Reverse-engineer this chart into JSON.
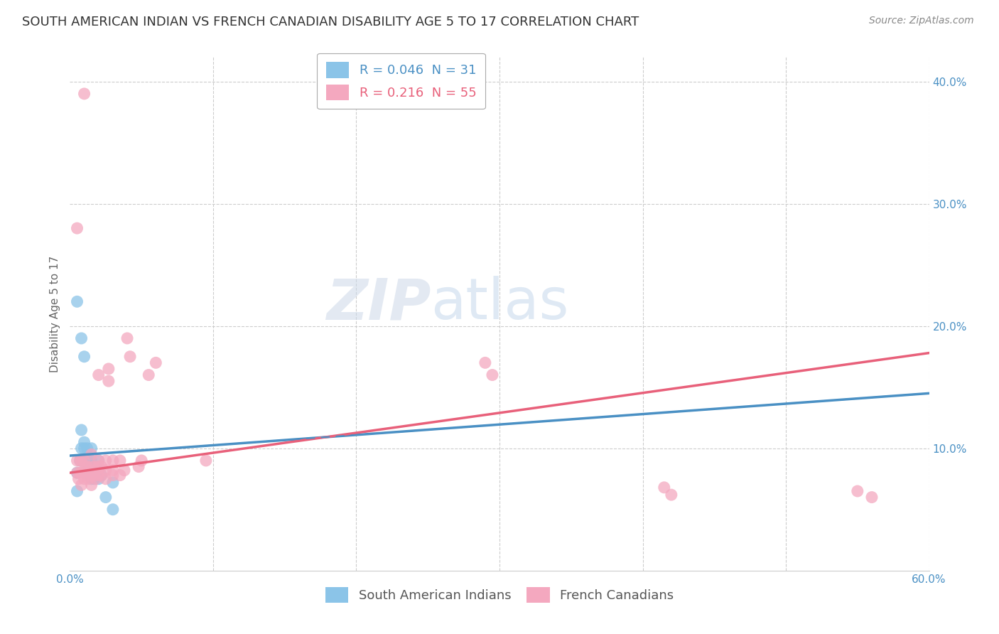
{
  "title": "SOUTH AMERICAN INDIAN VS FRENCH CANADIAN DISABILITY AGE 5 TO 17 CORRELATION CHART",
  "source": "Source: ZipAtlas.com",
  "ylabel": "Disability Age 5 to 17",
  "xlim": [
    0.0,
    0.6
  ],
  "ylim": [
    0.0,
    0.42
  ],
  "xticks": [
    0.0,
    0.1,
    0.2,
    0.3,
    0.4,
    0.5,
    0.6
  ],
  "xticklabels": [
    "0.0%",
    "",
    "",
    "",
    "",
    "",
    "60.0%"
  ],
  "yticks": [
    0.0,
    0.1,
    0.2,
    0.3,
    0.4
  ],
  "yticklabels": [
    "",
    "10.0%",
    "20.0%",
    "30.0%",
    "40.0%"
  ],
  "r_blue": 0.046,
  "n_blue": 31,
  "r_pink": 0.216,
  "n_pink": 55,
  "blue_color": "#8bc4e8",
  "pink_color": "#f4a8bf",
  "blue_line_color": "#4a90c4",
  "pink_line_color": "#e8607a",
  "background_color": "#ffffff",
  "grid_color": "#cccccc",
  "watermark_zip": "ZIP",
  "watermark_atlas": "atlas",
  "blue_scatter_x": [
    0.005,
    0.005,
    0.007,
    0.008,
    0.008,
    0.01,
    0.01,
    0.01,
    0.01,
    0.012,
    0.012,
    0.012,
    0.013,
    0.013,
    0.015,
    0.015,
    0.015,
    0.015,
    0.017,
    0.017,
    0.018,
    0.02,
    0.02,
    0.02,
    0.022,
    0.025,
    0.03,
    0.03,
    0.005,
    0.008,
    0.01
  ],
  "blue_scatter_y": [
    0.065,
    0.08,
    0.09,
    0.1,
    0.115,
    0.08,
    0.09,
    0.1,
    0.105,
    0.085,
    0.09,
    0.1,
    0.08,
    0.09,
    0.075,
    0.08,
    0.09,
    0.1,
    0.075,
    0.082,
    0.078,
    0.075,
    0.082,
    0.09,
    0.078,
    0.06,
    0.072,
    0.05,
    0.22,
    0.19,
    0.175
  ],
  "pink_scatter_x": [
    0.005,
    0.005,
    0.006,
    0.007,
    0.007,
    0.008,
    0.008,
    0.008,
    0.01,
    0.01,
    0.01,
    0.012,
    0.012,
    0.013,
    0.013,
    0.015,
    0.015,
    0.015,
    0.015,
    0.017,
    0.017,
    0.018,
    0.018,
    0.02,
    0.02,
    0.02,
    0.02,
    0.022,
    0.022,
    0.025,
    0.025,
    0.025,
    0.027,
    0.027,
    0.03,
    0.03,
    0.03,
    0.035,
    0.035,
    0.038,
    0.04,
    0.042,
    0.048,
    0.05,
    0.055,
    0.06,
    0.095,
    0.01,
    0.29,
    0.295,
    0.005,
    0.55,
    0.56,
    0.42,
    0.415
  ],
  "pink_scatter_y": [
    0.08,
    0.09,
    0.075,
    0.08,
    0.09,
    0.07,
    0.08,
    0.09,
    0.075,
    0.082,
    0.09,
    0.078,
    0.085,
    0.075,
    0.082,
    0.07,
    0.078,
    0.085,
    0.095,
    0.078,
    0.085,
    0.075,
    0.082,
    0.078,
    0.085,
    0.09,
    0.16,
    0.078,
    0.085,
    0.075,
    0.082,
    0.09,
    0.155,
    0.165,
    0.078,
    0.082,
    0.09,
    0.078,
    0.09,
    0.082,
    0.19,
    0.175,
    0.085,
    0.09,
    0.16,
    0.17,
    0.09,
    0.39,
    0.17,
    0.16,
    0.28,
    0.065,
    0.06,
    0.062,
    0.068
  ],
  "blue_trend_x": [
    0.0,
    0.6
  ],
  "blue_trend_y": [
    0.094,
    0.145
  ],
  "pink_trend_x": [
    0.0,
    0.6
  ],
  "pink_trend_y": [
    0.08,
    0.178
  ],
  "title_fontsize": 13,
  "axis_label_fontsize": 11,
  "tick_fontsize": 11,
  "legend_fontsize": 13,
  "source_fontsize": 10
}
